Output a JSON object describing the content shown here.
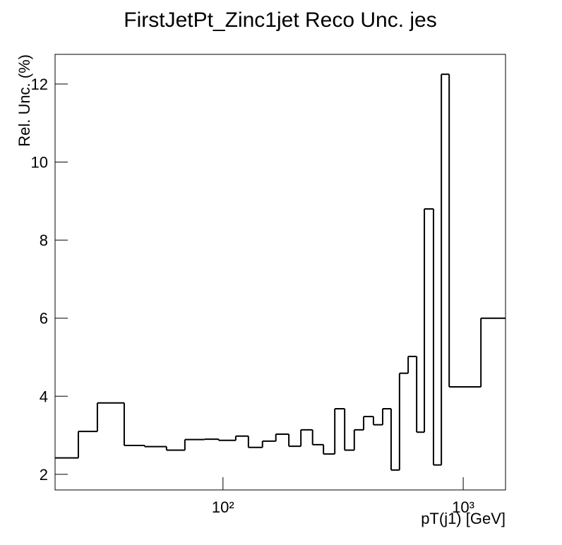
{
  "chart_data": {
    "type": "histogram",
    "title": "FirstJetPt_Zinc1jet Reco Unc. jes",
    "x_label": "pT(j1) [GeV]",
    "y_label": "Rel. Unc. (%)",
    "bins": [
      20,
      25,
      30,
      38.8,
      47.2,
      58.2,
      69.4,
      83.8,
      96,
      113,
      127.6,
      146,
      166,
      188,
      211,
      236,
      262,
      292,
      321,
      352,
      385,
      423,
      462,
      501,
      543,
      590,
      640,
      689,
      752,
      811,
      874,
      1185,
      1500
    ],
    "counts": [
      2.42,
      3.1,
      3.83,
      2.74,
      2.71,
      2.62,
      2.89,
      2.9,
      2.87,
      2.98,
      2.69,
      2.85,
      3.03,
      2.72,
      3.14,
      2.76,
      2.52,
      3.68,
      2.62,
      3.14,
      3.48,
      3.27,
      3.68,
      2.11,
      4.59,
      5.02,
      3.08,
      8.8,
      2.24,
      12.25,
      4.24,
      6.0
    ],
    "color": "#000000",
    "xlog": true,
    "xlim": [
      20,
      1500
    ],
    "ylim": [
      1.6,
      12.76
    ],
    "xticks": [
      {
        "value": 100,
        "label": "10²"
      },
      {
        "value": 1000,
        "label": "10³"
      }
    ],
    "yticks": [
      2,
      4,
      6,
      8,
      10,
      12
    ]
  }
}
